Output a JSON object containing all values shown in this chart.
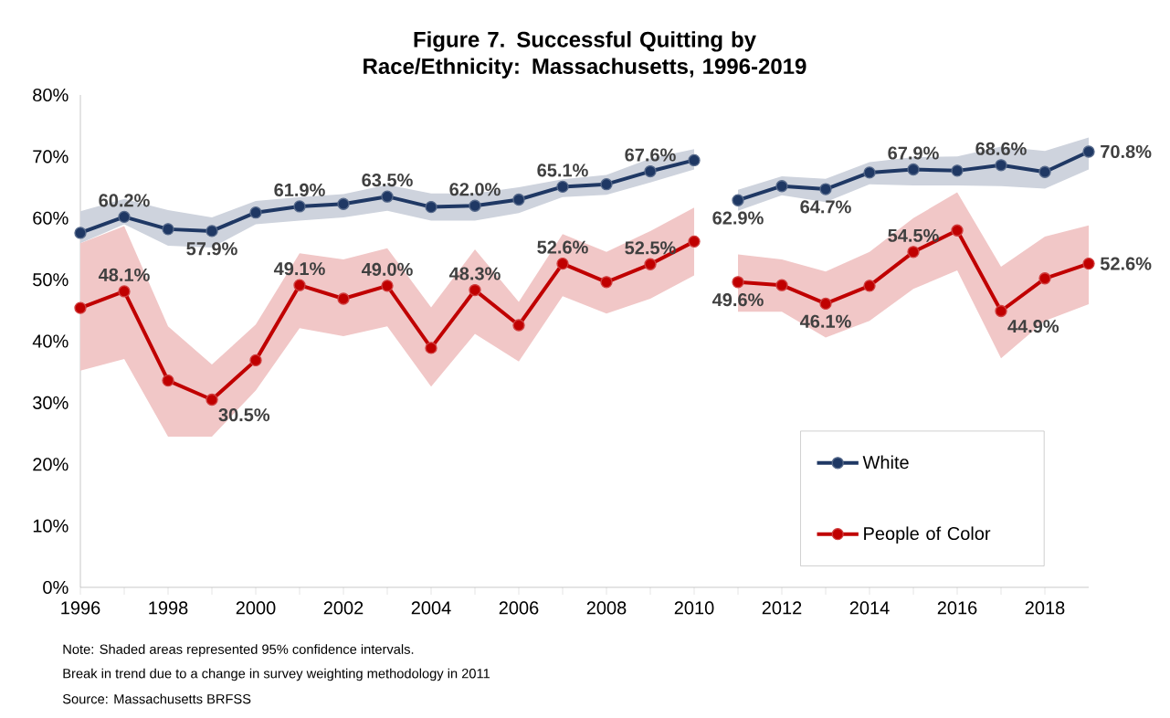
{
  "chart_data": {
    "type": "line",
    "title": "Figure 7. Successful Quitting by Race/Ethnicity: Massachusetts, 1996-2019",
    "xlim": [
      1996,
      2019
    ],
    "xticks": [
      1996,
      1998,
      2000,
      2002,
      2004,
      2006,
      2008,
      2010,
      2012,
      2014,
      2016,
      2018
    ],
    "ylim": [
      0,
      80
    ],
    "yticks": [
      {
        "value": 0,
        "label": "0%"
      },
      {
        "value": 10,
        "label": "10%"
      },
      {
        "value": 20,
        "label": "20%"
      },
      {
        "value": 30,
        "label": "30%"
      },
      {
        "value": 40,
        "label": "40%"
      },
      {
        "value": 50,
        "label": "50%"
      },
      {
        "value": 60,
        "label": "60%"
      },
      {
        "value": 70,
        "label": "70%"
      },
      {
        "value": 80,
        "label": "80%"
      }
    ],
    "marker": "circle",
    "line_style": "solid",
    "legend": "bottom right",
    "annotations": [
      "Note: Shaded areas represented 95% confidence intervals.",
      "Break in trend due to a change in survey weighting  methodology in 2011",
      "Source: Massachusetts BRFSS"
    ],
    "series": [
      {
        "name": "White",
        "color": "#1f3864",
        "x": [
          1996,
          1997,
          1998,
          1999,
          2000,
          2001,
          2002,
          2003,
          2004,
          2005,
          2006,
          2007,
          2008,
          2009,
          2010
        ],
        "values": [
          57.6,
          60.2,
          58.2,
          57.9,
          60.9,
          61.9,
          62.3,
          63.5,
          61.8,
          62.0,
          63.0,
          65.1,
          65.5,
          67.6,
          69.4
        ],
        "value_labels": [
          null,
          "60.2%",
          null,
          "57.9%",
          null,
          "61.9%",
          null,
          "63.5%",
          null,
          "62.0%",
          null,
          "65.1%",
          null,
          "67.6%",
          null
        ],
        "lower": [
          55.9,
          59.0,
          55.5,
          55.2,
          59.0,
          59.6,
          60.1,
          61.2,
          59.6,
          59.6,
          60.8,
          63.4,
          63.8,
          65.8,
          67.9
        ],
        "upper": [
          61.1,
          63.1,
          61.3,
          60.1,
          62.8,
          63.4,
          63.9,
          65.4,
          64.0,
          64.0,
          65.0,
          66.3,
          67.0,
          69.7,
          71.2
        ]
      },
      {
        "color": "#1f3864",
        "x": [
          2011,
          2012,
          2013,
          2014,
          2015,
          2016,
          2017,
          2018,
          2019
        ],
        "values": [
          62.9,
          65.2,
          64.7,
          67.4,
          67.9,
          67.7,
          68.6,
          67.5,
          70.8
        ],
        "value_labels": [
          "62.9%",
          null,
          "64.7%",
          null,
          "67.9%",
          null,
          "68.6%",
          null,
          "70.8%"
        ],
        "lower": [
          61.2,
          63.7,
          62.6,
          65.5,
          65.3,
          65.3,
          65.2,
          64.8,
          67.9
        ],
        "upper": [
          64.6,
          66.8,
          66.4,
          69.1,
          69.9,
          70.0,
          71.6,
          70.9,
          73.1
        ]
      },
      {
        "name": "People of Color",
        "color": "#c00000",
        "x": [
          1996,
          1997,
          1998,
          1999,
          2000,
          2001,
          2002,
          2003,
          2004,
          2005,
          2006,
          2007,
          2008,
          2009,
          2010
        ],
        "values": [
          45.4,
          48.1,
          33.6,
          30.5,
          36.9,
          49.1,
          46.9,
          49.0,
          38.9,
          48.3,
          42.6,
          52.6,
          49.6,
          52.5,
          56.2
        ],
        "value_labels": [
          null,
          "48.1%",
          null,
          "30.5%",
          null,
          "49.1%",
          null,
          "49.0%",
          null,
          "48.3%",
          null,
          "52.6%",
          null,
          "52.5%",
          null
        ],
        "lower": [
          35.2,
          37.1,
          24.5,
          24.5,
          32.0,
          42.1,
          40.8,
          42.4,
          32.6,
          41.2,
          36.7,
          47.3,
          44.5,
          46.9,
          50.7
        ],
        "upper": [
          55.9,
          58.7,
          42.4,
          36.2,
          42.7,
          54.3,
          53.3,
          55.1,
          45.5,
          54.9,
          46.4,
          57.4,
          54.5,
          57.9,
          61.7
        ]
      },
      {
        "color": "#c00000",
        "x": [
          2011,
          2012,
          2013,
          2014,
          2015,
          2016,
          2017,
          2018,
          2019
        ],
        "values": [
          49.6,
          49.1,
          46.1,
          49.0,
          54.5,
          58.0,
          44.9,
          50.2,
          52.6
        ],
        "value_labels": [
          "49.6%",
          null,
          "46.1%",
          null,
          "54.5%",
          null,
          "44.9%",
          null,
          "52.6%"
        ],
        "lower": [
          44.8,
          44.8,
          40.6,
          43.3,
          48.5,
          51.5,
          37.2,
          43.3,
          46.0
        ],
        "upper": [
          54.1,
          53.3,
          51.3,
          54.5,
          60.0,
          64.2,
          52.1,
          57.0,
          58.8
        ]
      }
    ]
  }
}
